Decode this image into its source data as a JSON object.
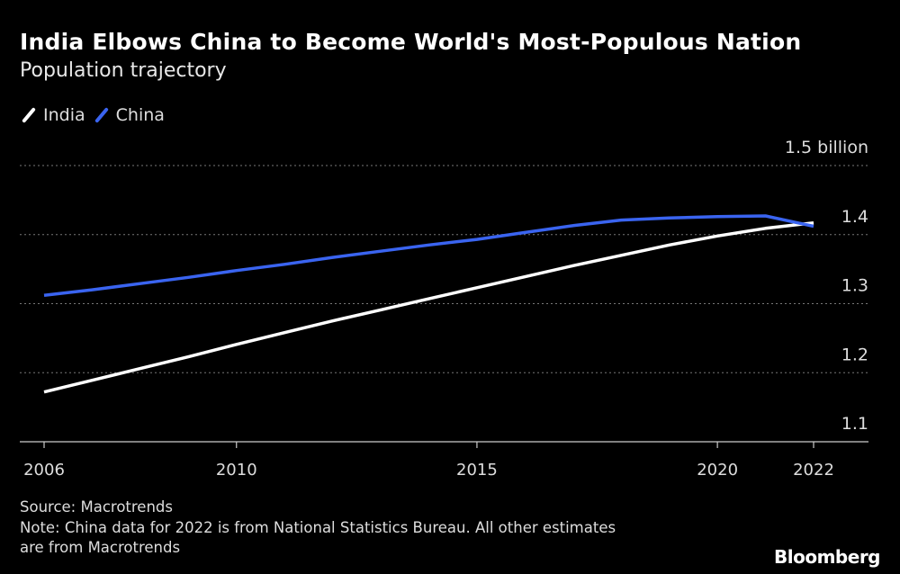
{
  "chart_data": {
    "type": "line",
    "title": "India Elbows China to Become World's Most-Populous Nation",
    "subtitle": "Population trajectory",
    "xlabel": "",
    "ylabel": "billion",
    "x": [
      2006,
      2007,
      2008,
      2009,
      2010,
      2011,
      2012,
      2013,
      2014,
      2015,
      2016,
      2017,
      2018,
      2019,
      2020,
      2021,
      2022
    ],
    "series": [
      {
        "name": "India",
        "color": "#ffffff",
        "values": [
          1.172,
          1.189,
          1.206,
          1.223,
          1.241,
          1.258,
          1.275,
          1.291,
          1.307,
          1.323,
          1.339,
          1.355,
          1.37,
          1.385,
          1.398,
          1.409,
          1.417
        ]
      },
      {
        "name": "China",
        "color": "#3a64f0",
        "values": [
          1.312,
          1.32,
          1.329,
          1.338,
          1.348,
          1.357,
          1.367,
          1.376,
          1.385,
          1.393,
          1.403,
          1.413,
          1.421,
          1.424,
          1.426,
          1.427,
          1.412
        ]
      }
    ],
    "xlim": [
      2006,
      2022
    ],
    "ylim": [
      1.1,
      1.5
    ],
    "x_ticks": [
      2006,
      2010,
      2015,
      2020,
      2022
    ],
    "x_tick_labels": [
      "2006",
      "2010",
      "2015",
      "2020",
      "2022"
    ],
    "y_ticks": [
      1.1,
      1.2,
      1.3,
      1.4,
      1.5
    ],
    "y_tick_labels": [
      "1.1",
      "1.2",
      "1.3",
      "1.4",
      "1.5 billion"
    ],
    "grid": true,
    "legend": "top-left"
  },
  "footer": {
    "source": "Source: Macrotrends",
    "note_line1": "Note: China data for 2022 is from National Statistics Bureau. All other estimates",
    "note_line2": "are from Macrotrends",
    "logo": "Bloomberg"
  }
}
